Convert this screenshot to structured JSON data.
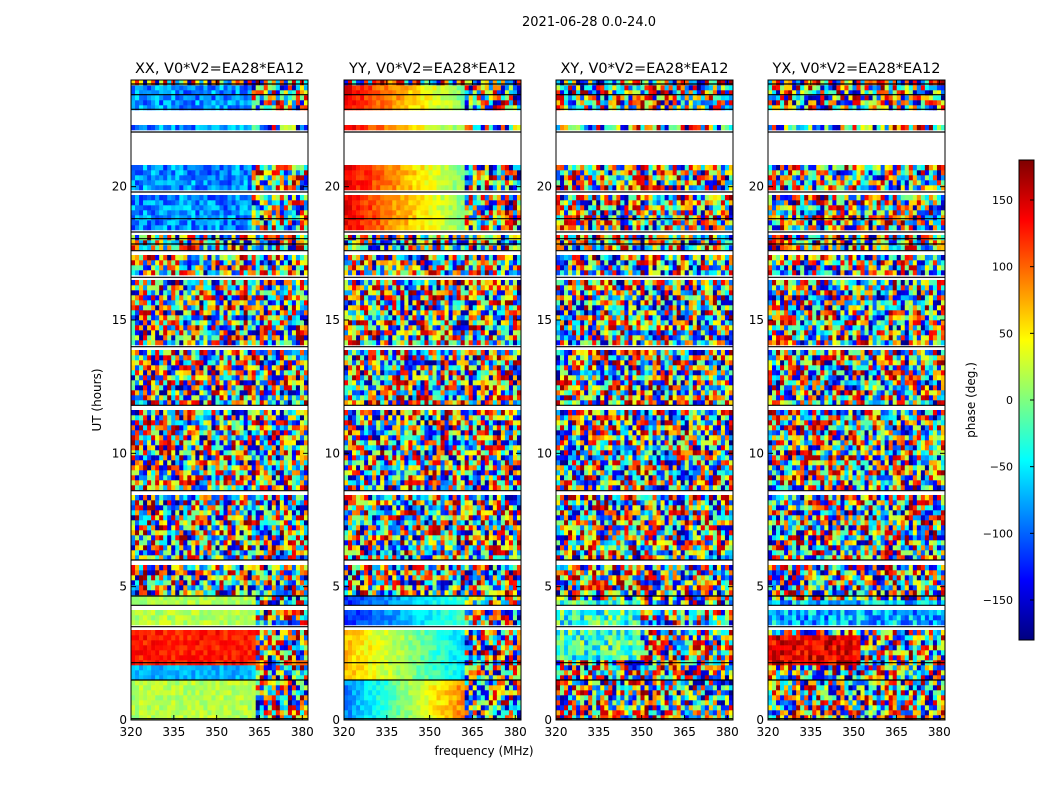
{
  "figure": {
    "suptitle": "2021-06-28 0.0-24.0",
    "xlabel": "frequency (MHz)",
    "ylabel": "UT (hours)"
  },
  "colorbar": {
    "label": "phase (deg.)",
    "range": [
      -180,
      180
    ],
    "ticks": [
      150,
      100,
      50,
      0,
      -50,
      -100,
      -150
    ],
    "tick_labels": [
      "150",
      "100",
      "50",
      "0",
      "−50",
      "−100",
      "−150"
    ],
    "colormap_stops": [
      "#00007f",
      "#0000ff",
      "#007fff",
      "#00ffff",
      "#7fff7f",
      "#ffff00",
      "#ff7f00",
      "#ff0000",
      "#7f0000"
    ]
  },
  "chart_data": {
    "type": "heatmap",
    "xlim": [
      320,
      382
    ],
    "ylim": [
      0,
      24
    ],
    "x_ticks": [
      320,
      335,
      350,
      365,
      380
    ],
    "y_ticks": [
      0,
      5,
      10,
      15,
      20
    ],
    "panels": [
      {
        "title": "XX, V0*V2=EA28*EA12"
      },
      {
        "title": "YY, V0*V2=EA28*EA12"
      },
      {
        "title": "XY, V0*V2=EA28*EA12"
      },
      {
        "title": "YX, V0*V2=EA28*EA12"
      }
    ],
    "data_gaps_hours": [
      [
        0.0,
        0.05
      ],
      [
        1.45,
        1.5
      ],
      [
        2.0,
        2.15
      ],
      [
        3.35,
        3.5
      ],
      [
        4.15,
        4.3
      ],
      [
        4.6,
        4.65
      ],
      [
        5.9,
        6.0
      ],
      [
        8.5,
        8.6
      ],
      [
        11.7,
        11.8
      ],
      [
        13.9,
        14.0
      ],
      [
        16.5,
        16.6
      ],
      [
        17.4,
        17.6
      ],
      [
        17.8,
        17.85
      ],
      [
        18.0,
        18.05
      ],
      [
        18.1,
        18.3
      ],
      [
        18.75,
        18.8
      ],
      [
        19.65,
        19.8
      ],
      [
        20.85,
        22.05
      ],
      [
        22.3,
        22.9
      ],
      [
        23.4,
        23.45
      ],
      [
        23.75,
        23.85
      ]
    ]
  }
}
